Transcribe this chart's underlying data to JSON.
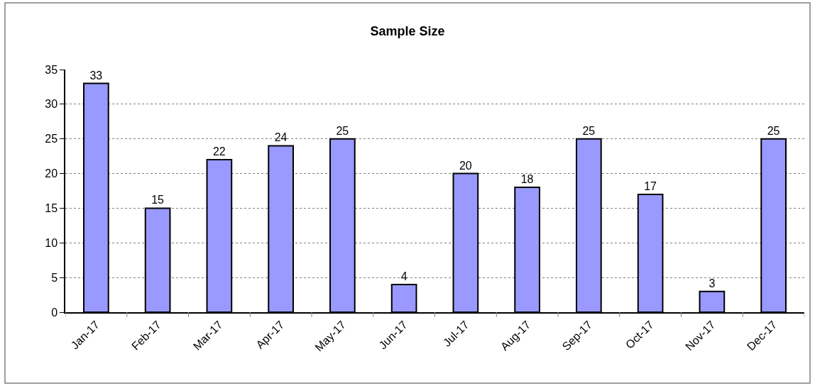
{
  "chart_data": {
    "type": "bar",
    "title": "Sample Size",
    "categories": [
      "Jan-17",
      "Feb-17",
      "Mar-17",
      "Apr-17",
      "May-17",
      "Jun-17",
      "Jul-17",
      "Aug-17",
      "Sep-17",
      "Oct-17",
      "Nov-17",
      "Dec-17"
    ],
    "values": [
      33,
      15,
      22,
      24,
      25,
      4,
      20,
      18,
      25,
      17,
      3,
      25
    ],
    "color": "#9999ff",
    "ylim": [
      0,
      35
    ],
    "yticks": [
      0,
      5,
      10,
      15,
      20,
      25,
      30,
      35
    ],
    "grid": "y",
    "data_labels": true
  }
}
